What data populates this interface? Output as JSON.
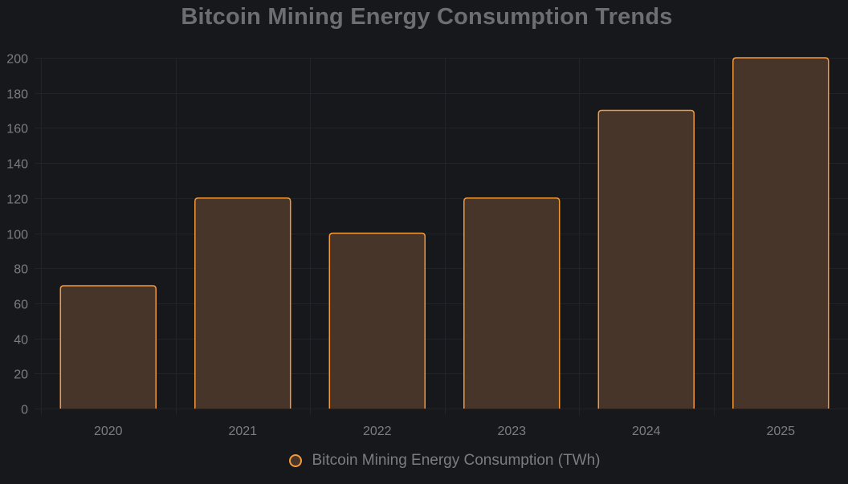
{
  "chart_data": {
    "type": "bar",
    "title": "Bitcoin Mining Energy Consumption Trends",
    "categories": [
      "2020",
      "2021",
      "2022",
      "2023",
      "2024",
      "2025"
    ],
    "series": [
      {
        "name": "Bitcoin Mining Energy Consumption (TWh)",
        "values": [
          70,
          120,
          100,
          120,
          170,
          200
        ]
      }
    ],
    "ylim": [
      0,
      200
    ],
    "yticks": [
      0,
      20,
      40,
      60,
      80,
      100,
      120,
      140,
      160,
      180,
      200
    ],
    "xlabel": "",
    "ylabel": "",
    "grid": true,
    "legend_position": "bottom",
    "colors": {
      "background": "#17181c",
      "bar_fill": "#47352a",
      "bar_border": "#f59a3a",
      "grid": "#222328",
      "text": "#7d7d80",
      "title": "#6e6e72"
    }
  }
}
